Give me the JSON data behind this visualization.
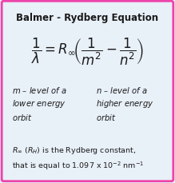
{
  "title": "Balmer - Rydberg Equation",
  "bg_color": "#e8f0f8",
  "border_color": "#ee44aa",
  "title_fontsize": 8.5,
  "formula_fontsize": 12,
  "label_fontsize": 7.2,
  "footnote_fontsize": 6.8,
  "text_color": "#1a1a1a",
  "footnote_line1": "$R_{\\infty}$ $(R_{H})$ is the Rydberg constant,",
  "footnote_line2": "that is equal to 1.097 x 10$^{-2}$ nm$^{-1}$"
}
